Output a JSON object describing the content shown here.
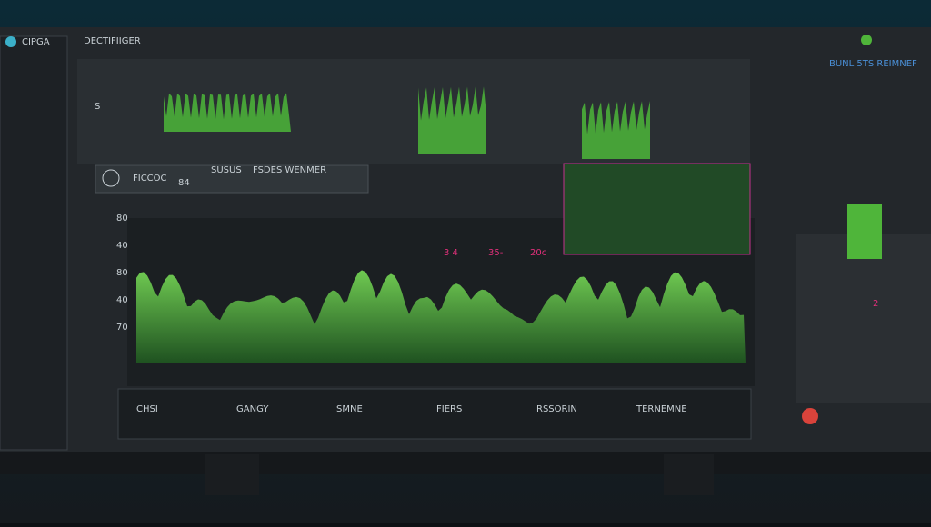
{
  "header": {
    "logo": "CIPGA",
    "title": "DECTIFIIGER",
    "status": "BUNL 5TS REIMNEF"
  },
  "toolbar": {
    "labels": [
      "FICCOC",
      "SUSUS",
      "FSDES WENMER"
    ],
    "value": "84"
  },
  "readouts": {
    "left": "S",
    "main": [
      "3 4",
      "35-",
      "20c"
    ],
    "side": "2"
  },
  "axis_labels": [
    "80",
    "40",
    "80",
    "40",
    "70"
  ],
  "footer_labels": [
    "CHSI",
    "GANGY",
    "SMNE",
    "FIERS",
    "RSSORIN",
    "TERNEMNE"
  ]
}
